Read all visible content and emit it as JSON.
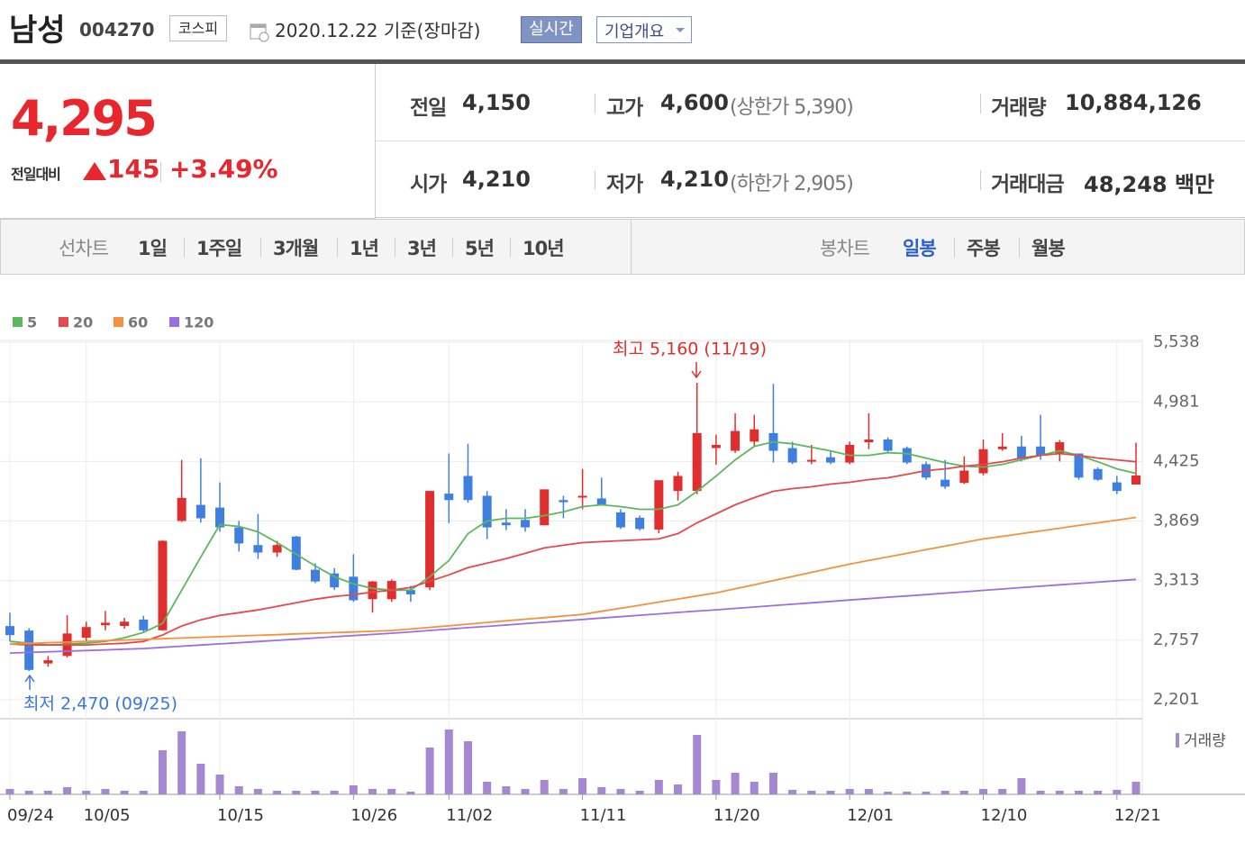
{
  "header": {
    "name": "남성",
    "code": "004270",
    "market": "코스피",
    "date": "2020.12.22 기준(장마감)",
    "realtime": "실시간",
    "company_info": "기업개요"
  },
  "quote": {
    "price": "4,295",
    "change_label": "전일대비",
    "change": "145",
    "change_pct": "+3.49%",
    "stats": [
      {
        "label": "전일",
        "value": "4,150"
      },
      {
        "label": "고가",
        "value": "4,600",
        "limit": "(상한가 5,390)"
      },
      {
        "label": "거래량",
        "value": "10,884,126"
      },
      {
        "label": "시가",
        "value": "4,210"
      },
      {
        "label": "저가",
        "value": "4,210",
        "limit": "(하한가 2,905)"
      },
      {
        "label": "거래대금",
        "value": "48,248 백만"
      }
    ]
  },
  "tabs": {
    "line_label": "선차트",
    "line_periods": [
      "1일",
      "1주일",
      "3개월",
      "1년",
      "3년",
      "5년",
      "10년"
    ],
    "candle_label": "봉차트",
    "candle_periods": [
      "일봉",
      "주봉",
      "월봉"
    ]
  },
  "chart_data": {
    "type": "candlestick",
    "categories": [
      "09/24",
      null,
      null,
      null,
      "10/05",
      null,
      null,
      null,
      null,
      null,
      null,
      "10/15",
      null,
      null,
      null,
      null,
      null,
      null,
      "10/26",
      null,
      null,
      null,
      null,
      "11/02",
      null,
      null,
      null,
      null,
      null,
      null,
      "11/11",
      null,
      null,
      null,
      null,
      null,
      null,
      "11/20",
      null,
      null,
      null,
      null,
      null,
      null,
      "12/01",
      null,
      null,
      null,
      null,
      null,
      null,
      "12/10",
      null,
      null,
      null,
      null,
      null,
      null,
      "12/21",
      null
    ],
    "open": [
      2889,
      2847,
      2540,
      2610,
      2780,
      2897,
      2890,
      2950,
      2850,
      3870,
      4020,
      3995,
      3810,
      3645,
      3575,
      3725,
      3415,
      3380,
      3350,
      3140,
      3140,
      3225,
      3250,
      4125,
      4290,
      4105,
      3855,
      3880,
      3830,
      4065,
      4090,
      4080,
      3950,
      3900,
      3790,
      4150,
      4150,
      4550,
      4525,
      4610,
      4690,
      4550,
      4425,
      4465,
      4415,
      4605,
      4630,
      4550,
      4400,
      4255,
      4225,
      4315,
      4540,
      4565,
      4565,
      4500,
      4500,
      4355,
      4230,
      4210
    ],
    "high": [
      3014,
      2870,
      2610,
      2990,
      2930,
      3030,
      2965,
      2985,
      3690,
      4440,
      4455,
      4230,
      3870,
      3935,
      3685,
      3730,
      3475,
      3430,
      3560,
      3310,
      3325,
      3265,
      4150,
      4500,
      4590,
      4150,
      3980,
      3980,
      4165,
      4105,
      4355,
      4275,
      3980,
      3920,
      4250,
      4330,
      5160,
      4675,
      4875,
      4860,
      5150,
      4610,
      4580,
      4525,
      4610,
      4875,
      4650,
      4565,
      4425,
      4440,
      4475,
      4630,
      4690,
      4665,
      4860,
      4625,
      4500,
      4370,
      4290,
      4600
    ],
    "low": [
      2746,
      2470,
      2510,
      2595,
      2745,
      2850,
      2865,
      2830,
      2845,
      3860,
      3855,
      3770,
      3585,
      3515,
      3535,
      3410,
      3290,
      3225,
      3115,
      3015,
      3115,
      3115,
      3225,
      3850,
      4040,
      3700,
      3785,
      3770,
      3830,
      3895,
      3980,
      4020,
      3795,
      3780,
      3755,
      4060,
      4120,
      4395,
      4505,
      4565,
      4415,
      4400,
      4400,
      4400,
      4400,
      4540,
      4505,
      4400,
      4255,
      4170,
      4215,
      4295,
      4525,
      4425,
      4440,
      4425,
      4255,
      4245,
      4120,
      4210
    ],
    "close": [
      2805,
      2480,
      2570,
      2820,
      2880,
      2920,
      2930,
      2850,
      3685,
      4085,
      3895,
      3810,
      3660,
      3575,
      3645,
      3415,
      3305,
      3250,
      3130,
      3305,
      3310,
      3185,
      4150,
      4065,
      4065,
      3810,
      3830,
      3810,
      4165,
      4045,
      4105,
      4020,
      3810,
      3795,
      4250,
      4290,
      4690,
      4580,
      4710,
      4725,
      4525,
      4415,
      4440,
      4415,
      4580,
      4630,
      4525,
      4415,
      4275,
      4190,
      4340,
      4540,
      4565,
      4455,
      4480,
      4605,
      4275,
      4255,
      4150,
      4295
    ],
    "up_color": "#e02e2e",
    "down_color": "#3f7fe0",
    "series": [
      {
        "name": "5",
        "color": "#5cb85c",
        "values": [
          2746,
          2729,
          2713,
          2721,
          2729,
          2746,
          2780,
          2830,
          2914,
          3224,
          3534,
          3836,
          3819,
          3769,
          3668,
          3559,
          3450,
          3350,
          3283,
          3241,
          3224,
          3224,
          3350,
          3501,
          3752,
          3870,
          3895,
          3895,
          3920,
          3954,
          4004,
          4021,
          4004,
          3979,
          3979,
          4021,
          4147,
          4289,
          4440,
          4566,
          4608,
          4591,
          4558,
          4524,
          4482,
          4482,
          4507,
          4499,
          4457,
          4415,
          4381,
          4373,
          4398,
          4440,
          4482,
          4524,
          4482,
          4423,
          4356,
          4314
        ]
      },
      {
        "name": "20",
        "color": "#e5484d",
        "values": [
          2721,
          2713,
          2713,
          2713,
          2713,
          2721,
          2729,
          2746,
          2805,
          2889,
          2947,
          2989,
          3014,
          3040,
          3073,
          3107,
          3140,
          3165,
          3182,
          3207,
          3224,
          3249,
          3308,
          3367,
          3434,
          3476,
          3518,
          3568,
          3618,
          3643,
          3668,
          3677,
          3685,
          3694,
          3702,
          3752,
          3853,
          3937,
          4021,
          4088,
          4147,
          4172,
          4189,
          4214,
          4231,
          4256,
          4273,
          4306,
          4340,
          4356,
          4381,
          4398,
          4423,
          4457,
          4482,
          4499,
          4482,
          4457,
          4440,
          4423
        ]
      },
      {
        "name": "60",
        "color": "#f5913e",
        "values": [
          2721,
          2727,
          2734,
          2740,
          2746,
          2753,
          2759,
          2765,
          2771,
          2778,
          2784,
          2790,
          2797,
          2803,
          2809,
          2816,
          2822,
          2828,
          2834,
          2841,
          2847,
          2862,
          2877,
          2892,
          2907,
          2923,
          2938,
          2953,
          2968,
          2983,
          2998,
          3027,
          3055,
          3084,
          3113,
          3142,
          3170,
          3199,
          3237,
          3275,
          3314,
          3352,
          3390,
          3429,
          3467,
          3501,
          3534,
          3568,
          3602,
          3635,
          3669,
          3702,
          3727,
          3752,
          3777,
          3802,
          3828,
          3853,
          3878,
          3903
        ]
      },
      {
        "name": "120",
        "color": "#9b6fe0",
        "values": [
          2637,
          2643,
          2649,
          2655,
          2661,
          2667,
          2673,
          2679,
          2690,
          2701,
          2712,
          2723,
          2734,
          2745,
          2756,
          2767,
          2778,
          2789,
          2800,
          2811,
          2822,
          2835,
          2848,
          2861,
          2874,
          2886,
          2899,
          2912,
          2925,
          2938,
          2951,
          2964,
          2977,
          2990,
          3003,
          3016,
          3029,
          3041,
          3054,
          3067,
          3080,
          3093,
          3106,
          3119,
          3132,
          3145,
          3158,
          3170,
          3183,
          3196,
          3209,
          3222,
          3235,
          3248,
          3261,
          3274,
          3286,
          3299,
          3312,
          3325
        ]
      }
    ],
    "volume": {
      "name": "거래량",
      "color": "#a587d2",
      "values": [
        4662000,
        3108000,
        3108000,
        6216000,
        3108000,
        4662000,
        3108000,
        3108000,
        38073000,
        54390000,
        26418000,
        17094000,
        6993000,
        4662000,
        3108000,
        3108000,
        3108000,
        3108000,
        7770000,
        4662000,
        4662000,
        2331000,
        40404000,
        55944000,
        45843000,
        10878000,
        6993000,
        4662000,
        12432000,
        4662000,
        13986000,
        6216000,
        4662000,
        3108000,
        12432000,
        8547000,
        51282000,
        12432000,
        18648000,
        10878000,
        18648000,
        3885000,
        3108000,
        3108000,
        4662000,
        4662000,
        2331000,
        2331000,
        2331000,
        3108000,
        3108000,
        4662000,
        4662000,
        13986000,
        3108000,
        3108000,
        3108000,
        3108000,
        3885000,
        10884126
      ]
    },
    "ylim": [
      2201,
      5538
    ],
    "yticks": [
      {
        "value": 2201,
        "label": "2,201"
      },
      {
        "value": 2757,
        "label": "2,757"
      },
      {
        "value": 3313,
        "label": "3,313"
      },
      {
        "value": 3869,
        "label": "3,869"
      },
      {
        "value": 4425,
        "label": "4,425"
      },
      {
        "value": 4981,
        "label": "4,981"
      },
      {
        "value": 5538,
        "label": "5,538"
      }
    ],
    "grid": true,
    "annotations": {
      "high": "최고 5,160 (11/19)",
      "low": "최저 2,470 (09/25)"
    }
  }
}
